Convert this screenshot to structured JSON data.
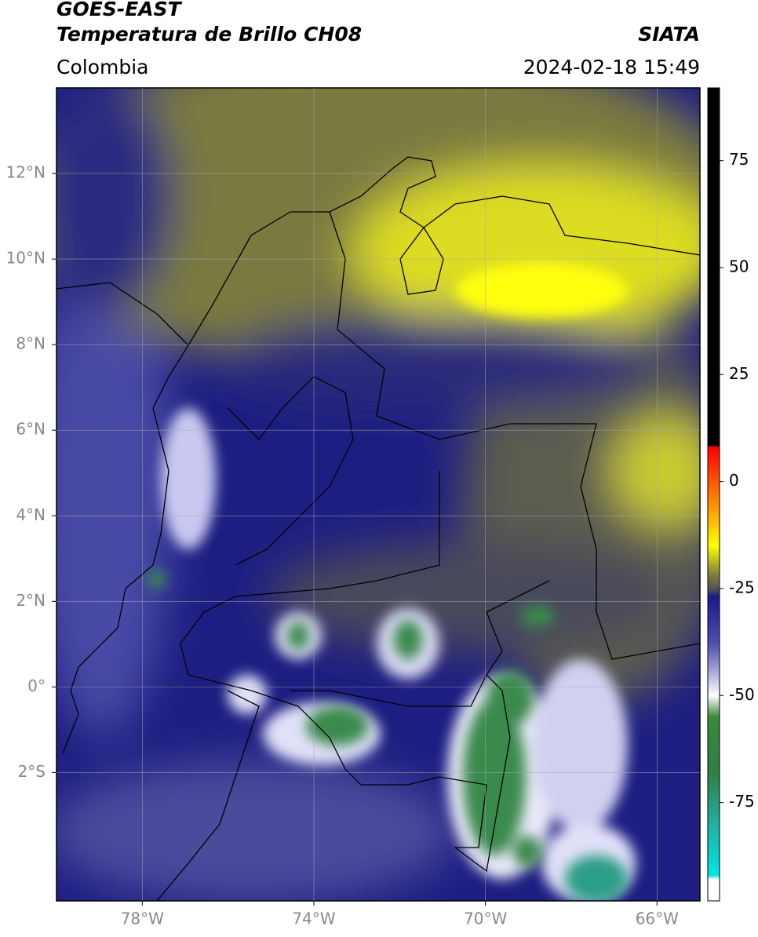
{
  "map": {
    "title": "GOES-EAST",
    "subtitle": "Temperatura de Brillo CH08",
    "source": "SIATA",
    "region": "Colombia",
    "timestamp": "2024-02-18 15:49",
    "xlim": [
      -80,
      -65
    ],
    "ylim": [
      -5,
      14
    ],
    "xticks": [
      {
        "value": -78,
        "label": "78°W"
      },
      {
        "value": -74,
        "label": "74°W"
      },
      {
        "value": -70,
        "label": "70°W"
      },
      {
        "value": -66,
        "label": "66°W"
      }
    ],
    "yticks": [
      {
        "value": 12,
        "label": "12°N"
      },
      {
        "value": 10,
        "label": "10°N"
      },
      {
        "value": 8,
        "label": "8°N"
      },
      {
        "value": 6,
        "label": "6°N"
      },
      {
        "value": 4,
        "label": "4°N"
      },
      {
        "value": 2,
        "label": "2°N"
      },
      {
        "value": 0,
        "label": "0°"
      },
      {
        "value": -2,
        "label": "2°S"
      }
    ],
    "grid": true,
    "colorbar": {
      "lim": [
        -98,
        92
      ],
      "ticks": [
        75,
        50,
        25,
        0,
        -25,
        -50,
        -75
      ],
      "colormap": [
        {
          "value": 92,
          "color": "#000000"
        },
        {
          "value": 8.5,
          "color": "#000000"
        },
        {
          "value": 8,
          "color": "#ff0000"
        },
        {
          "value": -5,
          "color": "#ff8c00"
        },
        {
          "value": -15,
          "color": "#ffff00"
        },
        {
          "value": -22,
          "color": "#7a7a3c"
        },
        {
          "value": -25,
          "color": "#555555"
        },
        {
          "value": -27,
          "color": "#1a1a8a"
        },
        {
          "value": -38,
          "color": "#5050b0"
        },
        {
          "value": -45,
          "color": "#b0b0e0"
        },
        {
          "value": -50,
          "color": "#ffffff"
        },
        {
          "value": -55,
          "color": "#3a8a3a"
        },
        {
          "value": -68,
          "color": "#2f7f45"
        },
        {
          "value": -80,
          "color": "#20b0a0"
        },
        {
          "value": -92,
          "color": "#00e5e5"
        },
        {
          "value": -93,
          "color": "#ffffff"
        },
        {
          "value": -98,
          "color": "#ffffff"
        }
      ]
    }
  }
}
